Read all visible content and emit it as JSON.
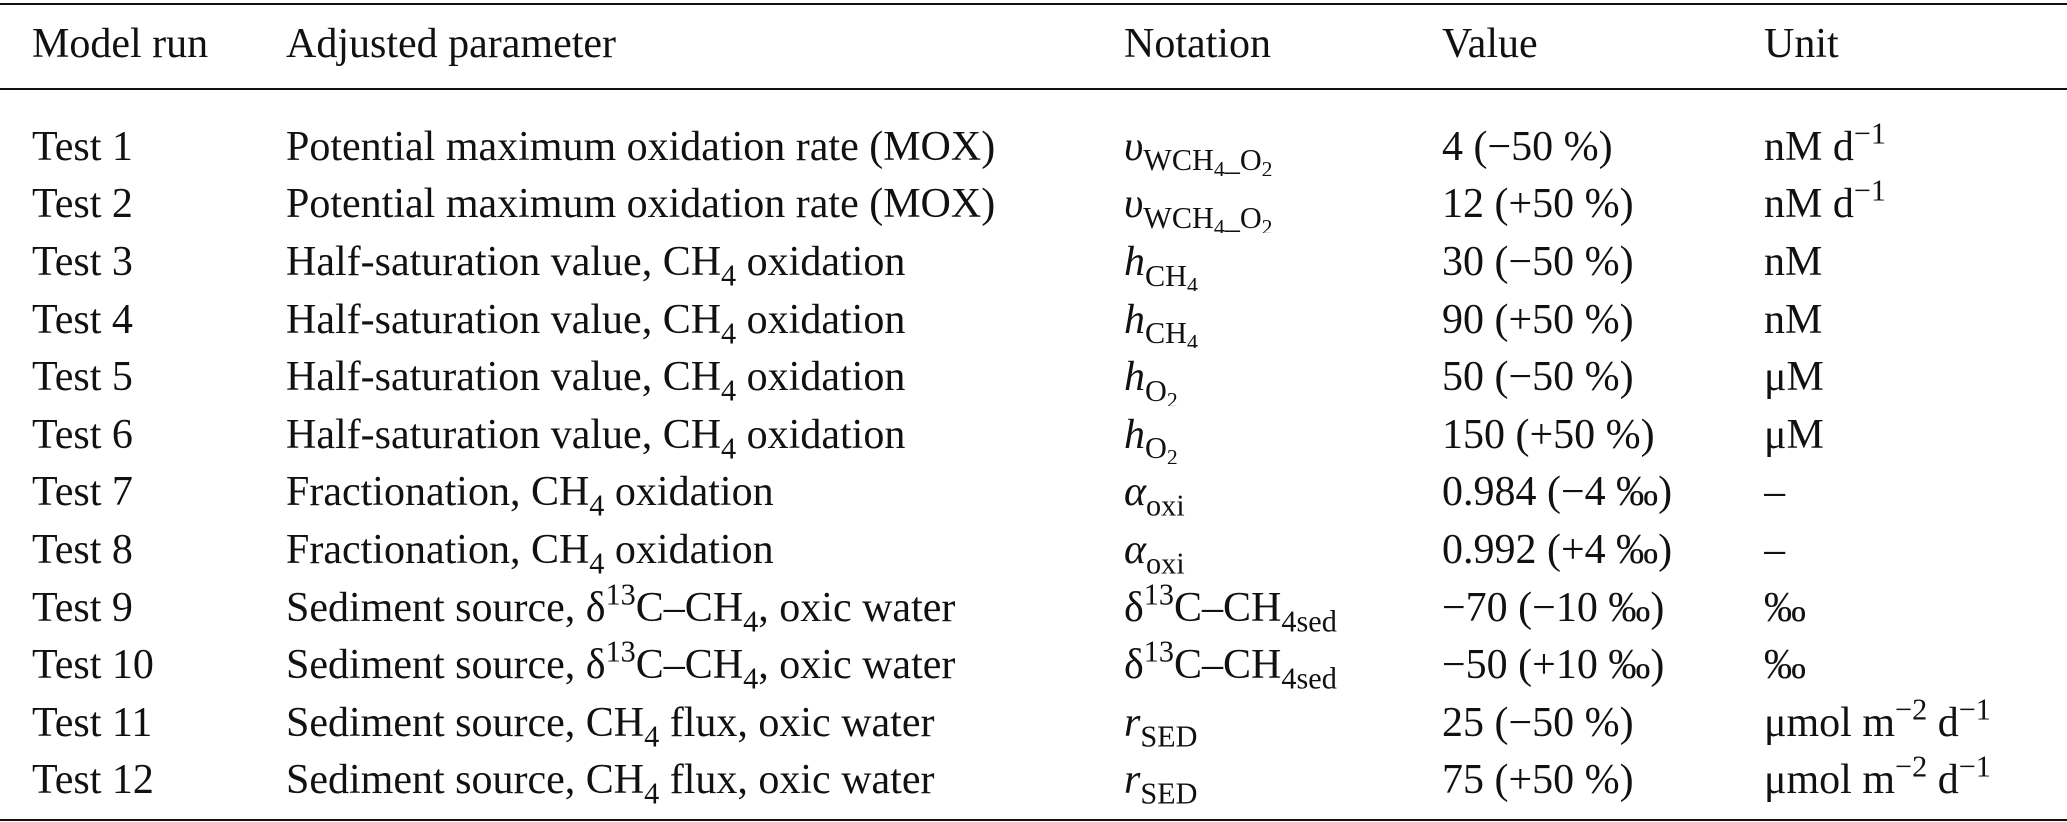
{
  "table": {
    "headers": {
      "model_run": "Model run",
      "adjusted_parameter": "Adjusted parameter",
      "notation": "Notation",
      "value": "Value",
      "unit": "Unit"
    },
    "rows": [
      {
        "run": "Test 1",
        "param": {
          "pre": "Potential maximum oxidation rate (MOX)"
        },
        "notation": {
          "sym": "υ",
          "sub_a": "WCH",
          "sub_b": "4",
          "sub_c": "_O",
          "sub_d": "2"
        },
        "value": "4 (−50 %)",
        "unit": {
          "main": "nM d",
          "sup": "−1"
        }
      },
      {
        "run": "Test 2",
        "param": {
          "pre": "Potential maximum oxidation rate (MOX)"
        },
        "notation": {
          "sym": "υ",
          "sub_a": "WCH",
          "sub_b": "4",
          "sub_c": "_O",
          "sub_d": "2"
        },
        "value": "12 (+50 %)",
        "unit": {
          "main": "nM d",
          "sup": "−1"
        }
      },
      {
        "run": "Test 3",
        "param": {
          "pre": "Half-saturation value, CH",
          "sub": "4",
          "post": " oxidation"
        },
        "notation": {
          "sym": "h",
          "sub_a": "CH",
          "sub_b": "4"
        },
        "value": "30 (−50 %)",
        "unit": {
          "main": "nM"
        }
      },
      {
        "run": "Test 4",
        "param": {
          "pre": "Half-saturation value, CH",
          "sub": "4",
          "post": " oxidation"
        },
        "notation": {
          "sym": "h",
          "sub_a": "CH",
          "sub_b": "4"
        },
        "value": "90 (+50 %)",
        "unit": {
          "main": "nM"
        }
      },
      {
        "run": "Test 5",
        "param": {
          "pre": "Half-saturation value, CH",
          "sub": "4",
          "post": " oxidation"
        },
        "notation": {
          "sym": "h",
          "sub_a": "O",
          "sub_b": "2"
        },
        "value": "50 (−50 %)",
        "unit": {
          "main": "μM"
        }
      },
      {
        "run": "Test 6",
        "param": {
          "pre": "Half-saturation value, CH",
          "sub": "4",
          "post": " oxidation"
        },
        "notation": {
          "sym": "h",
          "sub_a": "O",
          "sub_b": "2"
        },
        "value": "150 (+50 %)",
        "unit": {
          "main": "μM"
        }
      },
      {
        "run": "Test 7",
        "param": {
          "pre": "Fractionation, CH",
          "sub": "4",
          "post": " oxidation"
        },
        "notation": {
          "sym": "α",
          "sub_a": "oxi"
        },
        "value": "0.984 (−4 ‰)",
        "unit": {
          "main": "–"
        }
      },
      {
        "run": "Test 8",
        "param": {
          "pre": "Fractionation, CH",
          "sub": "4",
          "post": " oxidation"
        },
        "notation": {
          "sym": "α",
          "sub_a": "oxi"
        },
        "value": "0.992 (+4 ‰)",
        "unit": {
          "main": "–"
        }
      },
      {
        "run": "Test 9",
        "param": {
          "pre": "Sediment source, δ",
          "sup": "13",
          "mid": "C–CH",
          "sub": "4",
          "post": ", oxic water"
        },
        "notation": {
          "sym": "δ",
          "sup": "13",
          "mid": "C–CH",
          "sub_a": "4sed"
        },
        "value": "−70 (−10 ‰)",
        "unit": {
          "main": "‰"
        }
      },
      {
        "run": "Test 10",
        "param": {
          "pre": "Sediment source, δ",
          "sup": "13",
          "mid": "C–CH",
          "sub": "4",
          "post": ", oxic water"
        },
        "notation": {
          "sym": "δ",
          "sup": "13",
          "mid": "C–CH",
          "sub_a": "4sed"
        },
        "value": "−50 (+10 ‰)",
        "unit": {
          "main": "‰"
        }
      },
      {
        "run": "Test 11",
        "param": {
          "pre": "Sediment source, CH",
          "sub": "4",
          "post": " flux, oxic water"
        },
        "notation": {
          "sym": "r",
          "sub_a": "SED"
        },
        "value": "25 (−50 %)",
        "unit": {
          "main": "μmol m",
          "sup": "−2",
          "tail": " d",
          "sup2": "−1"
        }
      },
      {
        "run": "Test 12",
        "param": {
          "pre": "Sediment source, CH",
          "sub": "4",
          "post": " flux, oxic water"
        },
        "notation": {
          "sym": "r",
          "sub_a": "SED"
        },
        "value": "75 (+50 %)",
        "unit": {
          "main": "μmol m",
          "sup": "−2",
          "tail": " d",
          "sup2": "−1"
        }
      }
    ]
  }
}
